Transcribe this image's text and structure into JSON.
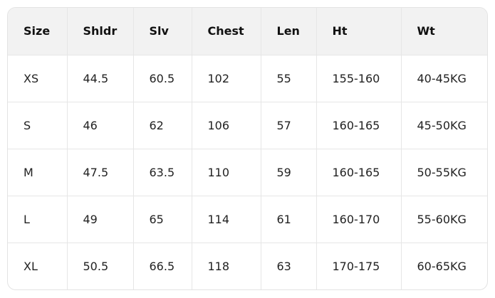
{
  "table": {
    "headers": [
      "Size",
      "Shldr",
      "Slv",
      "Chest",
      "Len",
      "Ht",
      "Wt"
    ],
    "rows": [
      [
        "XS",
        "44.5",
        "60.5",
        "102",
        "55",
        "155-160",
        "40-45KG"
      ],
      [
        "S",
        "46",
        "62",
        "106",
        "57",
        "160-165",
        "45-50KG"
      ],
      [
        "M",
        "47.5",
        "63.5",
        "110",
        "59",
        "160-165",
        "50-55KG"
      ],
      [
        "L",
        "49",
        "65",
        "114",
        "61",
        "160-170",
        "55-60KG"
      ],
      [
        "XL",
        "50.5",
        "66.5",
        "118",
        "63",
        "170-175",
        "60-65KG"
      ]
    ]
  }
}
